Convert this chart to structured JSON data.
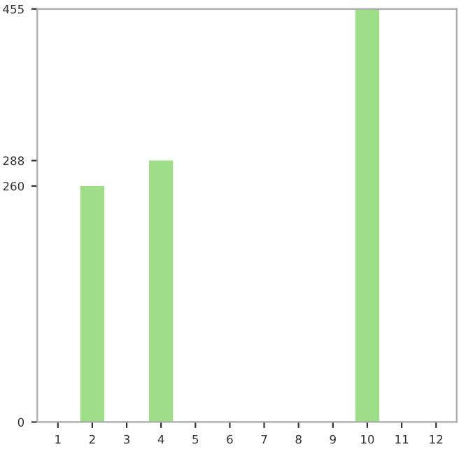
{
  "chart_data": {
    "type": "bar",
    "categories": [
      "1",
      "2",
      "3",
      "4",
      "5",
      "6",
      "7",
      "8",
      "9",
      "10",
      "11",
      "12"
    ],
    "values": [
      0,
      260,
      0,
      288,
      0,
      0,
      0,
      0,
      0,
      455,
      0,
      0
    ],
    "color": "#9ede88",
    "ylim": [
      0,
      455
    ],
    "yticks": [
      0,
      260,
      288,
      455
    ],
    "grid": false
  }
}
